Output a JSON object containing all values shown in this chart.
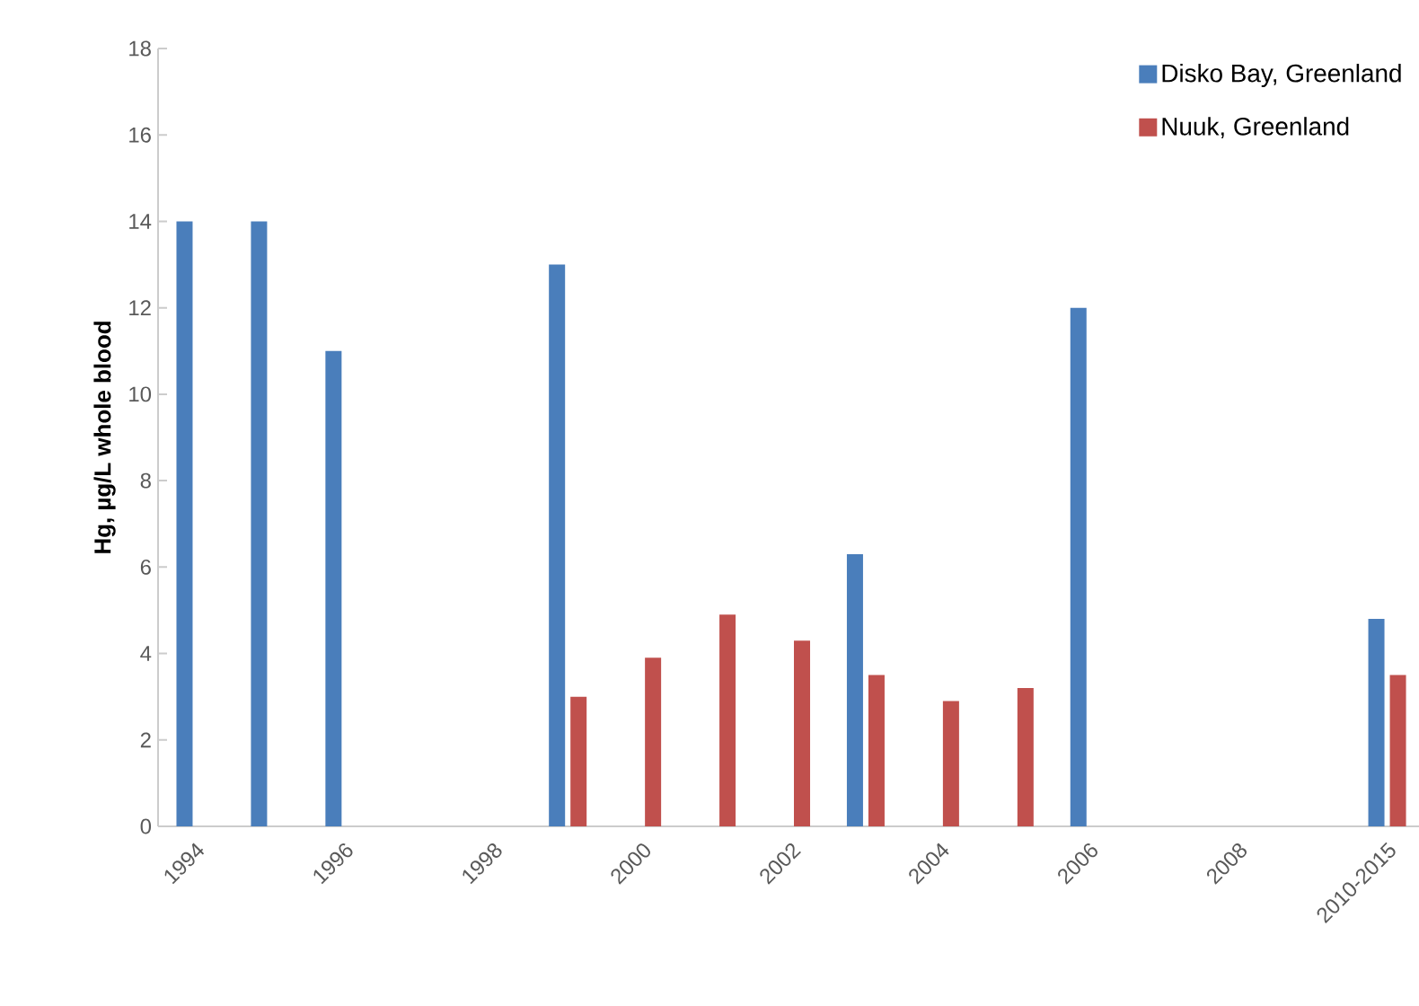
{
  "chart_data": {
    "type": "bar",
    "ylabel": "Hg, µg/L whole blood",
    "categories": [
      "1994",
      null,
      "1996",
      null,
      "1998",
      null,
      "2000",
      null,
      "2002",
      null,
      "2004",
      null,
      "2006",
      null,
      "2008",
      null,
      "2010-2015"
    ],
    "series": [
      {
        "name": "Disko Bay, Greenland",
        "color": "#4a7ebb",
        "values": [
          14,
          14,
          11,
          null,
          null,
          13,
          null,
          null,
          null,
          6.3,
          null,
          null,
          12,
          null,
          null,
          null,
          4.8
        ]
      },
      {
        "name": "Nuuk, Greenland",
        "color": "#c0504d",
        "values": [
          null,
          null,
          null,
          null,
          null,
          3,
          3.9,
          4.9,
          4.3,
          3.5,
          2.9,
          3.2,
          null,
          null,
          null,
          null,
          3.5
        ]
      }
    ],
    "ylim": [
      0,
      18
    ],
    "yticks": [
      0,
      2,
      4,
      6,
      8,
      10,
      12,
      14,
      16,
      18
    ],
    "grid": false,
    "legend": "top right"
  }
}
